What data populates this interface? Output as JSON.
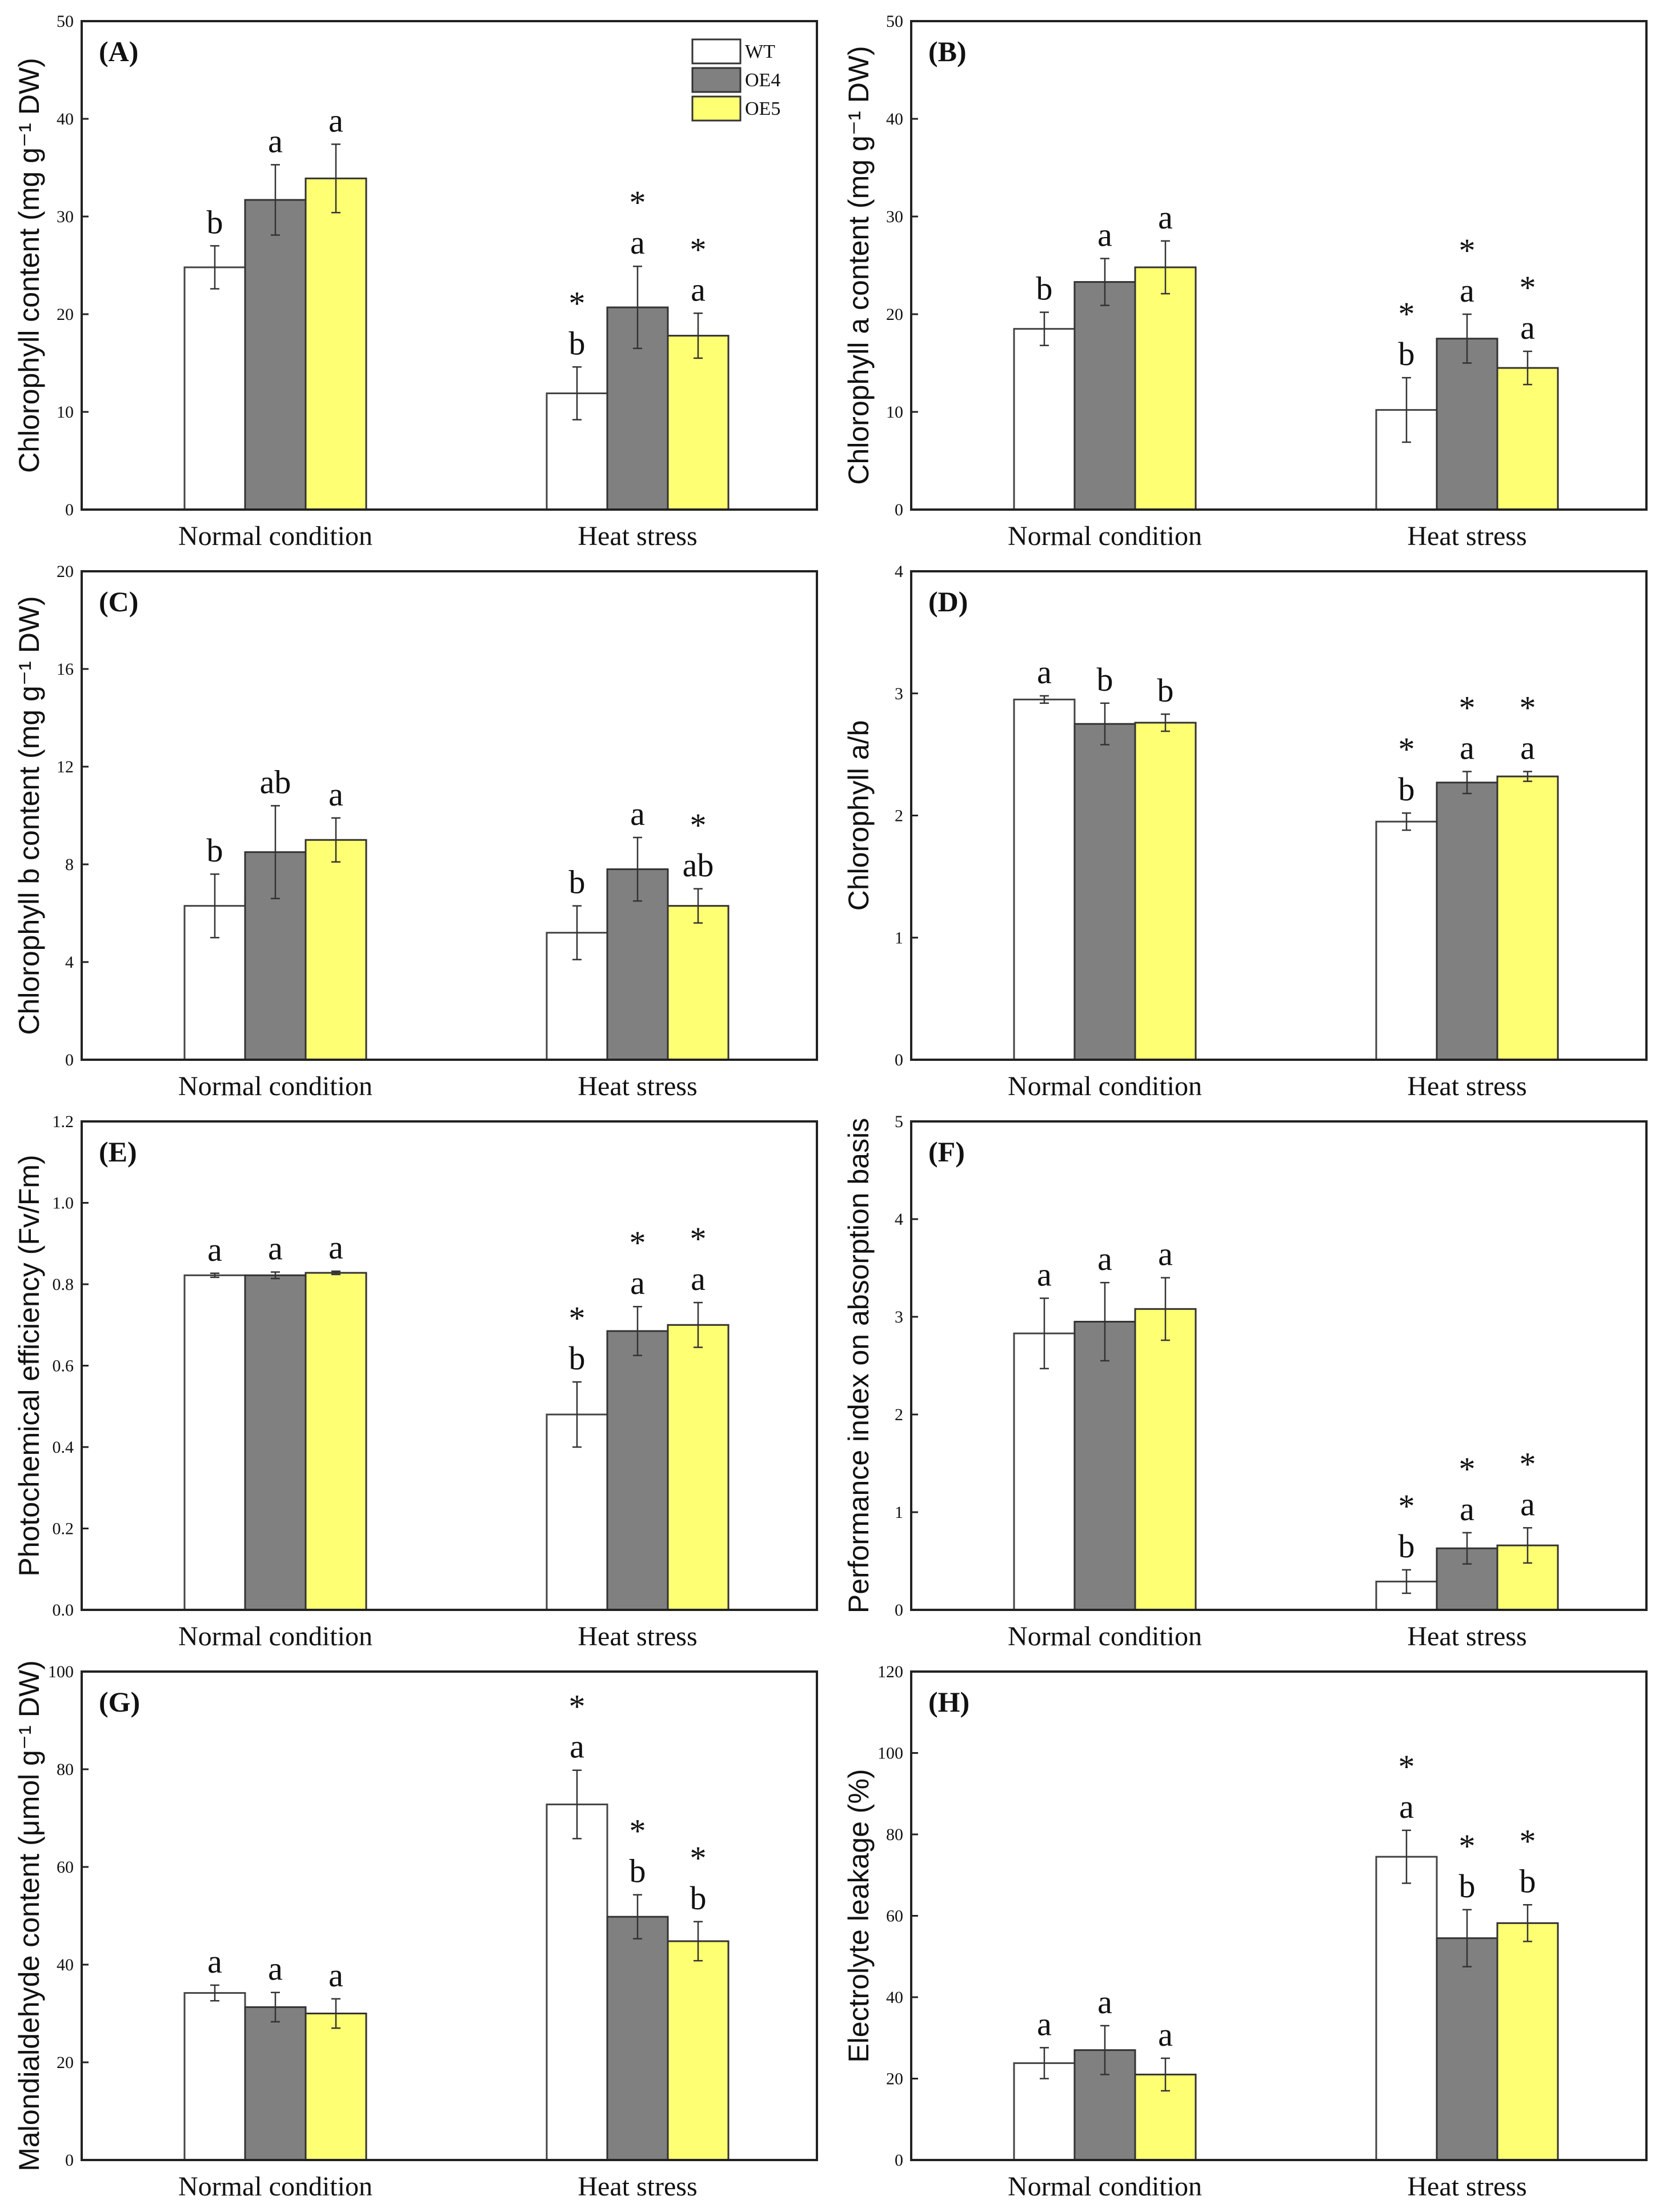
{
  "chart_data": [
    {
      "type": "bar",
      "panel": "(A)",
      "ylabel": "Chlorophyll content (mg g⁻¹ DW)",
      "ylim": [
        0,
        50
      ],
      "yticks": [
        "0",
        "10",
        "20",
        "30",
        "40",
        "50"
      ],
      "categories": [
        "Normal condition",
        "Heat stress"
      ],
      "series": [
        {
          "name": "WT",
          "values": [
            24.8,
            11.9
          ],
          "errors": [
            2.2,
            2.7
          ],
          "letters": [
            "b",
            "b"
          ],
          "stars": [
            false,
            true
          ]
        },
        {
          "name": "OE4",
          "values": [
            31.7,
            20.7
          ],
          "errors": [
            3.6,
            4.2
          ],
          "letters": [
            "a",
            "a"
          ],
          "stars": [
            false,
            true
          ]
        },
        {
          "name": "OE5",
          "values": [
            33.9,
            17.8
          ],
          "errors": [
            3.5,
            2.3
          ],
          "letters": [
            "a",
            "a"
          ],
          "stars": [
            false,
            true
          ]
        }
      ],
      "legend": "top-right"
    },
    {
      "type": "bar",
      "panel": "(B)",
      "ylabel": "Chlorophyll a content (mg g⁻¹ DW)",
      "ylim": [
        0,
        50
      ],
      "yticks": [
        "0",
        "10",
        "20",
        "30",
        "40",
        "50"
      ],
      "categories": [
        "Normal condition",
        "Heat stress"
      ],
      "series": [
        {
          "name": "WT",
          "values": [
            18.5,
            10.2
          ],
          "errors": [
            1.7,
            3.3
          ],
          "letters": [
            "b",
            "b"
          ],
          "stars": [
            false,
            true
          ]
        },
        {
          "name": "OE4",
          "values": [
            23.3,
            17.5
          ],
          "errors": [
            2.4,
            2.5
          ],
          "letters": [
            "a",
            "a"
          ],
          "stars": [
            false,
            true
          ]
        },
        {
          "name": "OE5",
          "values": [
            24.8,
            14.5
          ],
          "errors": [
            2.7,
            1.7
          ],
          "letters": [
            "a",
            "a"
          ],
          "stars": [
            false,
            true
          ]
        }
      ]
    },
    {
      "type": "bar",
      "panel": "(C)",
      "ylabel": "Chlorophyll b content (mg g⁻¹ DW)",
      "ylim": [
        0,
        20
      ],
      "yticks": [
        "0",
        "4",
        "8",
        "12",
        "16",
        "20"
      ],
      "categories": [
        "Normal condition",
        "Heat stress"
      ],
      "series": [
        {
          "name": "WT",
          "values": [
            6.3,
            5.2
          ],
          "errors": [
            1.3,
            1.1
          ],
          "letters": [
            "b",
            "b"
          ],
          "stars": [
            false,
            false
          ]
        },
        {
          "name": "OE4",
          "values": [
            8.5,
            7.8
          ],
          "errors": [
            1.9,
            1.3
          ],
          "letters": [
            "ab",
            "a"
          ],
          "stars": [
            false,
            false
          ]
        },
        {
          "name": "OE5",
          "values": [
            9.0,
            6.3
          ],
          "errors": [
            0.9,
            0.7
          ],
          "letters": [
            "a",
            "ab"
          ],
          "stars": [
            false,
            true
          ]
        }
      ]
    },
    {
      "type": "bar",
      "panel": "(D)",
      "ylabel": "Chlorophyll a/b",
      "ylim": [
        0,
        4
      ],
      "yticks": [
        "0",
        "1",
        "2",
        "3",
        "4"
      ],
      "categories": [
        "Normal condition",
        "Heat stress"
      ],
      "series": [
        {
          "name": "WT",
          "values": [
            2.95,
            1.95
          ],
          "errors": [
            0.03,
            0.07
          ],
          "letters": [
            "a",
            "b"
          ],
          "stars": [
            false,
            true
          ]
        },
        {
          "name": "OE4",
          "values": [
            2.75,
            2.27
          ],
          "errors": [
            0.17,
            0.09
          ],
          "letters": [
            "b",
            "a"
          ],
          "stars": [
            false,
            true
          ]
        },
        {
          "name": "OE5",
          "values": [
            2.76,
            2.32
          ],
          "errors": [
            0.07,
            0.04
          ],
          "letters": [
            "b",
            "a"
          ],
          "stars": [
            false,
            true
          ]
        }
      ]
    },
    {
      "type": "bar",
      "panel": "(E)",
      "ylabel": "Photochemical efficiency (Fv/Fm)",
      "ylim": [
        0,
        1.2
      ],
      "yticks": [
        "0.0",
        "0.2",
        "0.4",
        "0.6",
        "0.8",
        "1.0",
        "1.2"
      ],
      "categories": [
        "Normal condition",
        "Heat stress"
      ],
      "series": [
        {
          "name": "WT",
          "values": [
            0.822,
            0.48
          ],
          "errors": [
            0.005,
            0.08
          ],
          "letters": [
            "a",
            "b"
          ],
          "stars": [
            false,
            true
          ]
        },
        {
          "name": "OE4",
          "values": [
            0.822,
            0.685
          ],
          "errors": [
            0.008,
            0.06
          ],
          "letters": [
            "a",
            "a"
          ],
          "stars": [
            false,
            true
          ]
        },
        {
          "name": "OE5",
          "values": [
            0.828,
            0.7
          ],
          "errors": [
            0.004,
            0.055
          ],
          "letters": [
            "a",
            "a"
          ],
          "stars": [
            false,
            true
          ]
        }
      ]
    },
    {
      "type": "bar",
      "panel": "(F)",
      "ylabel": "Performance index on absorption basis",
      "ylim": [
        0,
        5
      ],
      "yticks": [
        "0",
        "1",
        "2",
        "3",
        "4",
        "5"
      ],
      "categories": [
        "Normal condition",
        "Heat stress"
      ],
      "series": [
        {
          "name": "WT",
          "values": [
            2.83,
            0.29
          ],
          "errors": [
            0.36,
            0.12
          ],
          "letters": [
            "a",
            "b"
          ],
          "stars": [
            false,
            true
          ]
        },
        {
          "name": "OE4",
          "values": [
            2.95,
            0.63
          ],
          "errors": [
            0.4,
            0.16
          ],
          "letters": [
            "a",
            "a"
          ],
          "stars": [
            false,
            true
          ]
        },
        {
          "name": "OE5",
          "values": [
            3.08,
            0.66
          ],
          "errors": [
            0.32,
            0.18
          ],
          "letters": [
            "a",
            "a"
          ],
          "stars": [
            false,
            true
          ]
        }
      ]
    },
    {
      "type": "bar",
      "panel": "(G)",
      "ylabel": "Malondialdehyde content (μmol g⁻¹ DW)",
      "ylim": [
        0,
        100
      ],
      "yticks": [
        "0",
        "20",
        "40",
        "60",
        "80",
        "100"
      ],
      "categories": [
        "Normal condition",
        "Heat stress"
      ],
      "series": [
        {
          "name": "WT",
          "values": [
            34.2,
            72.8
          ],
          "errors": [
            1.6,
            7.0
          ],
          "letters": [
            "a",
            "a"
          ],
          "stars": [
            false,
            true
          ]
        },
        {
          "name": "OE4",
          "values": [
            31.3,
            49.8
          ],
          "errors": [
            3.0,
            4.5
          ],
          "letters": [
            "a",
            "b"
          ],
          "stars": [
            false,
            true
          ]
        },
        {
          "name": "OE5",
          "values": [
            30.0,
            44.8
          ],
          "errors": [
            3.0,
            4.0
          ],
          "letters": [
            "a",
            "b"
          ],
          "stars": [
            false,
            true
          ]
        }
      ]
    },
    {
      "type": "bar",
      "panel": "(H)",
      "ylabel": "Electrolyte leakage (%)",
      "ylim": [
        0,
        120
      ],
      "yticks": [
        "0",
        "20",
        "40",
        "60",
        "80",
        "100",
        "120"
      ],
      "categories": [
        "Normal condition",
        "Heat stress"
      ],
      "series": [
        {
          "name": "WT",
          "values": [
            23.8,
            74.5
          ],
          "errors": [
            3.8,
            6.5
          ],
          "letters": [
            "a",
            "a"
          ],
          "stars": [
            false,
            true
          ]
        },
        {
          "name": "OE4",
          "values": [
            27.0,
            54.5
          ],
          "errors": [
            6.0,
            7.0
          ],
          "letters": [
            "a",
            "b"
          ],
          "stars": [
            false,
            true
          ]
        },
        {
          "name": "OE5",
          "values": [
            21.0,
            58.2
          ],
          "errors": [
            4.0,
            4.5
          ],
          "letters": [
            "a",
            "b"
          ],
          "stars": [
            false,
            true
          ]
        }
      ]
    }
  ],
  "star_symbol": "*",
  "colors": {
    "WT": "#ffffff",
    "OE4": "#808080",
    "OE5": "#ffff73"
  }
}
